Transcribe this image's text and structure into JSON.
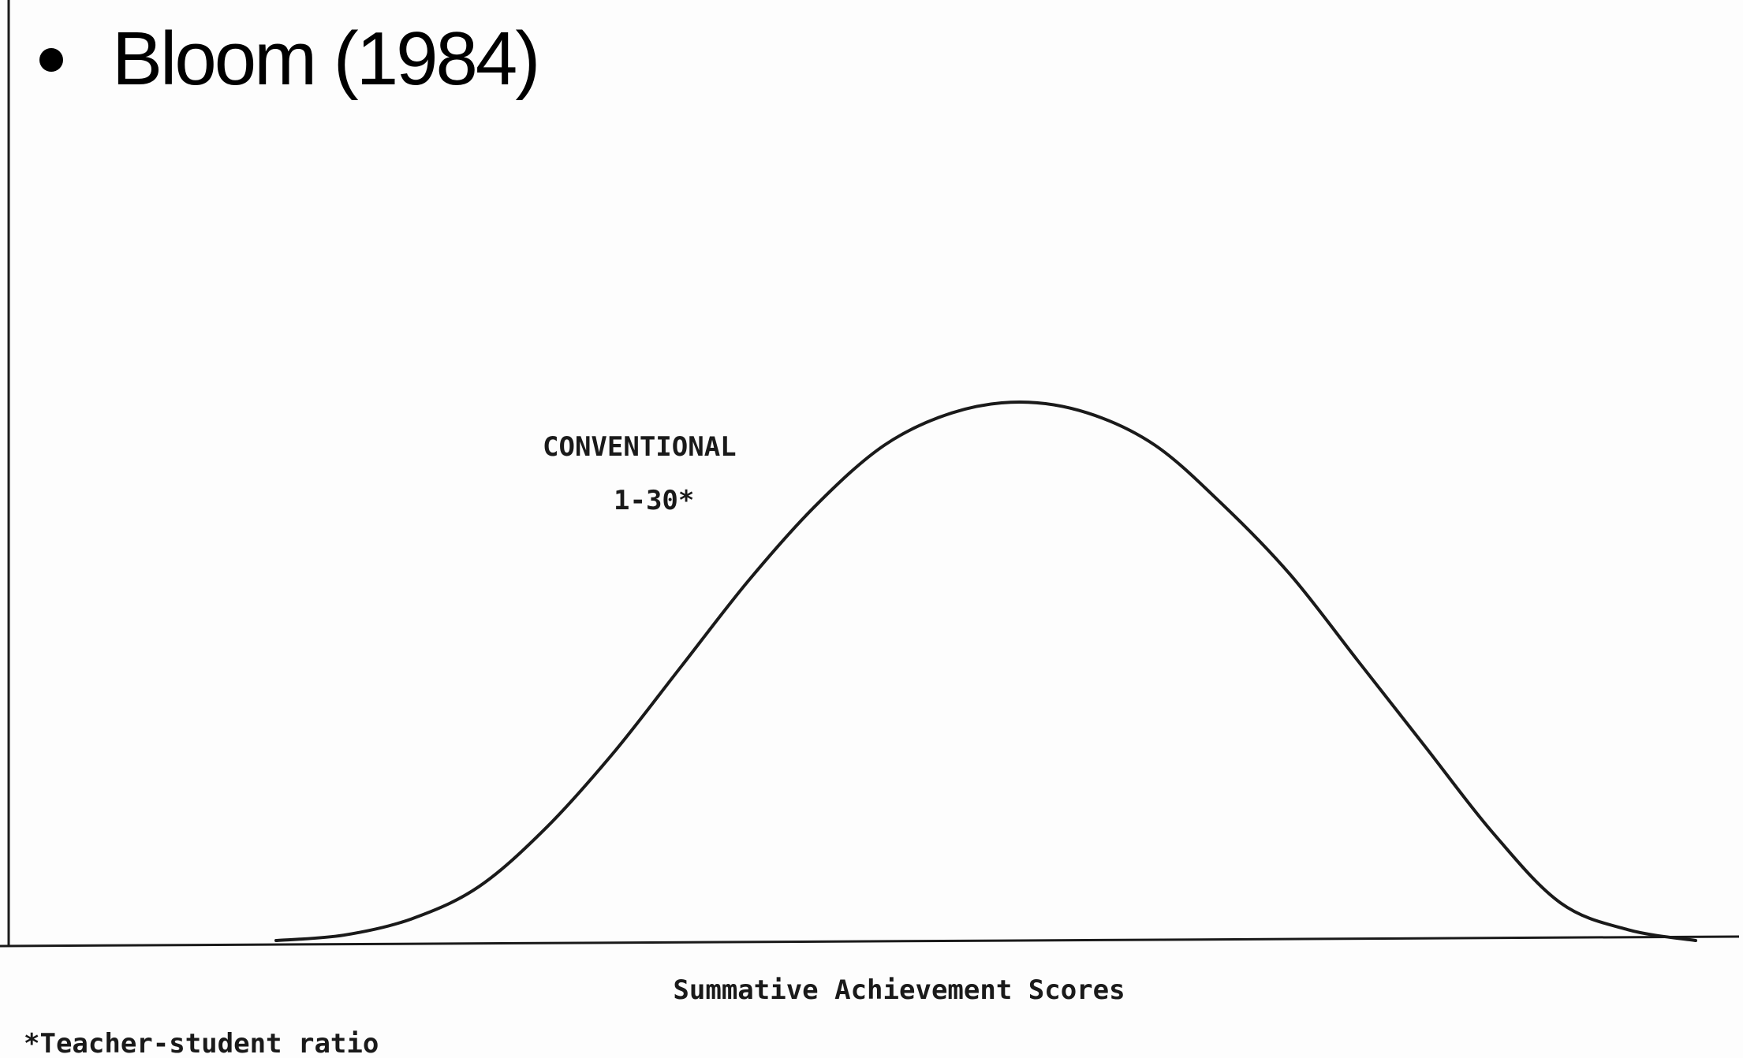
{
  "slide": {
    "bullet_text": "Bloom (1984)"
  },
  "chart_data": {
    "type": "line",
    "xlabel": "Summative Achievement Scores",
    "ylabel": "",
    "series": [
      {
        "name": "CONVENTIONAL",
        "label_line1": "CONVENTIONAL",
        "label_line2": "1-30*",
        "values": [
          0.0,
          0.01,
          0.04,
          0.1,
          0.21,
          0.35,
          0.51,
          0.67,
          0.81,
          0.92,
          0.98,
          1.0,
          0.98,
          0.92,
          0.81,
          0.68,
          0.52,
          0.36,
          0.2,
          0.07,
          0.02,
          0.0
        ]
      }
    ],
    "footnote": "*Teacher-student ratio",
    "grid": false,
    "legend": "none",
    "ink_color": "#1a1a1a"
  }
}
